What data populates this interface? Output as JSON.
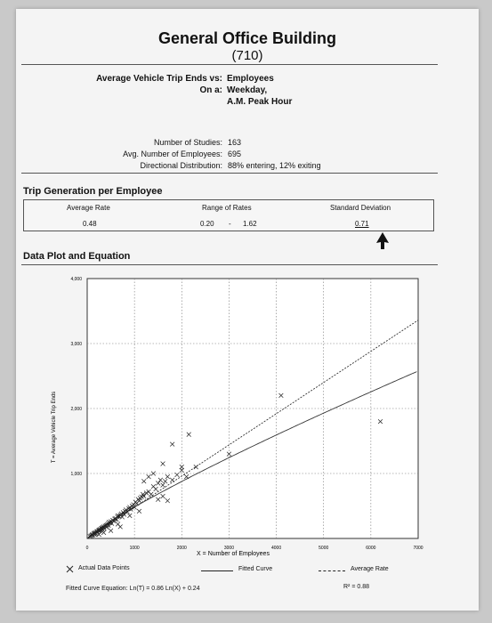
{
  "header": {
    "title": "General Office Building",
    "code": "(710)"
  },
  "subtitle": {
    "line1_label": "Average Vehicle Trip Ends vs:",
    "line1_value": "Employees",
    "line2_label": "On a:",
    "line2_value": "Weekday,",
    "line3_value": "A.M. Peak Hour"
  },
  "stats": {
    "studies_label": "Number of Studies:",
    "studies_value": "163",
    "avg_emp_label": "Avg. Number of Employees:",
    "avg_emp_value": "695",
    "dir_label": "Directional Distribution:",
    "dir_value": "88% entering, 12% exiting"
  },
  "trip_generation": {
    "heading": "Trip Generation per Employee",
    "avg_rate_header": "Average Rate",
    "avg_rate_value": "0.48",
    "range_header": "Range of Rates",
    "range_low": "0.20",
    "range_sep": "-",
    "range_high": "1.62",
    "sd_header": "Standard Deviation",
    "sd_value": "0.71"
  },
  "plot_section": {
    "heading": "Data Plot and Equation"
  },
  "legend": {
    "actual": "Actual Data Points",
    "fitted": "Fitted Curve",
    "average": "Average Rate",
    "equation": "Fitted Curve Equation: Ln(T) = 0.86 Ln(X) + 0.24",
    "r2": "R² = 0.88"
  },
  "colors": {
    "plot_bg": "#ffffff",
    "data": "#222222",
    "grid": "#777777"
  },
  "chart_data": {
    "type": "scatter",
    "xlabel": "X = Number of Employees",
    "ylabel": "T = Average Vehicle Trip Ends",
    "xlim": [
      0,
      7000
    ],
    "ylim": [
      0,
      4000
    ],
    "x_ticks": [
      "0",
      "1000",
      "2000",
      "3000",
      "4000",
      "5000",
      "6000",
      "7000"
    ],
    "y_ticks": [
      "1,000",
      "2,000",
      "3,000",
      "4,000"
    ],
    "grid": true,
    "series": [
      {
        "name": "Actual Data Points",
        "kind": "points",
        "points": [
          [
            60,
            30
          ],
          [
            80,
            40
          ],
          [
            100,
            50
          ],
          [
            110,
            60
          ],
          [
            120,
            55
          ],
          [
            140,
            70
          ],
          [
            150,
            80
          ],
          [
            160,
            60
          ],
          [
            170,
            90
          ],
          [
            180,
            75
          ],
          [
            200,
            95
          ],
          [
            210,
            110
          ],
          [
            220,
            100
          ],
          [
            240,
            120
          ],
          [
            250,
            130
          ],
          [
            260,
            115
          ],
          [
            270,
            140
          ],
          [
            280,
            125
          ],
          [
            300,
            150
          ],
          [
            310,
            160
          ],
          [
            320,
            140
          ],
          [
            330,
            170
          ],
          [
            350,
            180
          ],
          [
            360,
            155
          ],
          [
            380,
            190
          ],
          [
            400,
            200
          ],
          [
            410,
            175
          ],
          [
            420,
            210
          ],
          [
            440,
            230
          ],
          [
            450,
            200
          ],
          [
            460,
            250
          ],
          [
            480,
            240
          ],
          [
            500,
            260
          ],
          [
            520,
            230
          ],
          [
            540,
            280
          ],
          [
            560,
            270
          ],
          [
            580,
            300
          ],
          [
            600,
            310
          ],
          [
            620,
            290
          ],
          [
            640,
            330
          ],
          [
            650,
            350
          ],
          [
            680,
            340
          ],
          [
            700,
            360
          ],
          [
            720,
            380
          ],
          [
            740,
            330
          ],
          [
            760,
            400
          ],
          [
            780,
            370
          ],
          [
            800,
            420
          ],
          [
            820,
            440
          ],
          [
            850,
            410
          ],
          [
            880,
            460
          ],
          [
            900,
            480
          ],
          [
            920,
            450
          ],
          [
            950,
            500
          ],
          [
            980,
            520
          ],
          [
            1000,
            480
          ],
          [
            1020,
            560
          ],
          [
            1050,
            540
          ],
          [
            1080,
            600
          ],
          [
            1100,
            580
          ],
          [
            1120,
            620
          ],
          [
            1150,
            640
          ],
          [
            1180,
            680
          ],
          [
            1200,
            650
          ],
          [
            1250,
            700
          ],
          [
            1300,
            720
          ],
          [
            1350,
            680
          ],
          [
            1400,
            800
          ],
          [
            1450,
            760
          ],
          [
            1500,
            850
          ],
          [
            1550,
            900
          ],
          [
            1600,
            820
          ],
          [
            1650,
            880
          ],
          [
            1700,
            950
          ],
          [
            1800,
            900
          ],
          [
            1900,
            980
          ],
          [
            2000,
            1050
          ],
          [
            2100,
            950
          ],
          [
            1200,
            880
          ],
          [
            1300,
            950
          ],
          [
            1500,
            600
          ],
          [
            1600,
            650
          ],
          [
            1700,
            580
          ],
          [
            1400,
            1000
          ],
          [
            1600,
            1150
          ],
          [
            1800,
            1450
          ],
          [
            2000,
            1100
          ],
          [
            2150,
            1600
          ],
          [
            2300,
            1100
          ],
          [
            3000,
            1300
          ],
          [
            4100,
            2200
          ],
          [
            6200,
            1800
          ],
          [
            700,
            180
          ],
          [
            500,
            120
          ],
          [
            350,
            90
          ],
          [
            250,
            60
          ],
          [
            900,
            350
          ],
          [
            1100,
            420
          ],
          [
            650,
            220
          ]
        ]
      },
      {
        "name": "Fitted Curve",
        "kind": "line",
        "equation": "Ln(T) = 0.86 Ln(X) + 0.24"
      },
      {
        "name": "Average Rate",
        "kind": "dashed-line",
        "rate": 0.48
      }
    ]
  }
}
